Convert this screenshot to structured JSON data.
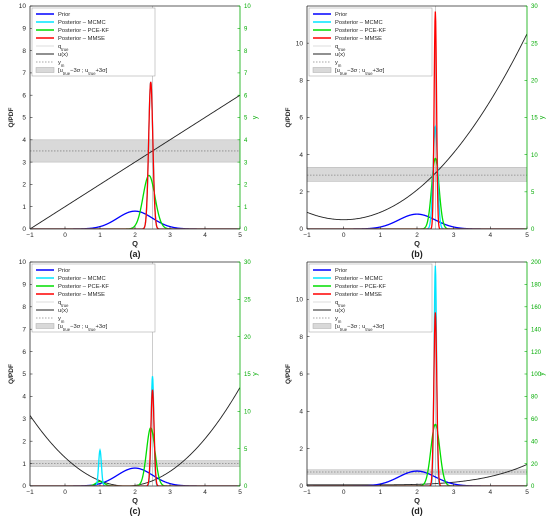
{
  "colors": {
    "prior": "#0000ff",
    "mcmc": "#00e5ff",
    "pce_kf": "#00dd00",
    "mmse": "#ff0000",
    "u": "#222222",
    "qtrue": "#aaaaaa",
    "band": "#d9d9d9",
    "y_axis": "#00aa00"
  },
  "legend_entries": [
    "Prior",
    "Posterior – MCMC",
    "Posterior – PCE-KF",
    "Posterior – MMSE",
    "q_true",
    "u(x)",
    "y_m",
    "[u_true−3σ ; u_true+3σ]"
  ],
  "chart_data": [
    {
      "type": "line",
      "panel_label": "(a)",
      "xlabel": "Q",
      "ylabel_left": "Q/PDF",
      "ylabel_right": "y",
      "xlim": [
        -1,
        5
      ],
      "ylim_left": [
        0,
        10
      ],
      "ylim_right": [
        0,
        10
      ],
      "x_ticks": [
        -1,
        0,
        1,
        2,
        3,
        4,
        5
      ],
      "y_left_ticks": [
        0,
        1,
        2,
        3,
        4,
        5,
        6,
        7,
        8,
        9,
        10
      ],
      "y_right_ticks": [
        0,
        1,
        2,
        3,
        4,
        5,
        6,
        7,
        8,
        9,
        10
      ],
      "q_true": 2.5,
      "y_m": 3.5,
      "band": [
        3.0,
        4.0
      ],
      "u": {
        "form": "linear",
        "slope": 1,
        "intercept": 1
      },
      "series": [
        {
          "name": "Prior",
          "mean": 2.0,
          "sd": 0.5,
          "peak": 0.8
        },
        {
          "name": "Posterior – MCMC",
          "mean": 2.45,
          "sd": 0.06,
          "peak": 6.6
        },
        {
          "name": "Posterior – PCE-KF",
          "mean": 2.4,
          "sd": 0.17,
          "peak": 2.4
        },
        {
          "name": "Posterior – MMSE",
          "mean": 2.45,
          "sd": 0.06,
          "peak": 6.6
        }
      ],
      "legend_show_all": true
    },
    {
      "type": "line",
      "panel_label": "(b)",
      "xlabel": "Q",
      "ylabel_left": "Q/PDF",
      "ylabel_right": "y",
      "xlim": [
        -1,
        5
      ],
      "ylim_left": [
        0,
        12
      ],
      "ylim_right": [
        0,
        30
      ],
      "x_ticks": [
        -1,
        0,
        1,
        2,
        3,
        4,
        5
      ],
      "y_left_ticks": [
        0,
        2,
        4,
        6,
        8,
        10
      ],
      "y_right_ticks": [
        0,
        5,
        10,
        15,
        20,
        25,
        30
      ],
      "q_true": 2.5,
      "y_m": 7.25,
      "band": [
        6.4,
        8.3
      ],
      "u": {
        "form": "quadratic",
        "a": 1,
        "h": 0,
        "k": 1.25
      },
      "series": [
        {
          "name": "Prior",
          "mean": 2.0,
          "sd": 0.5,
          "peak": 0.8
        },
        {
          "name": "Posterior – MCMC",
          "mean": 2.5,
          "sd": 0.06,
          "peak": 5.5
        },
        {
          "name": "Posterior – PCE-KF",
          "mean": 2.5,
          "sd": 0.1,
          "peak": 3.8
        },
        {
          "name": "Posterior – MMSE",
          "mean": 2.5,
          "sd": 0.033,
          "peak": 11.7
        }
      ],
      "legend_show_all": true
    },
    {
      "type": "line",
      "panel_label": "(c)",
      "xlabel": "Q",
      "ylabel_left": "Q/PDF",
      "ylabel_right": "y",
      "xlim": [
        -1,
        5
      ],
      "ylim_left": [
        0,
        10
      ],
      "ylim_right": [
        0,
        30
      ],
      "x_ticks": [
        -1,
        0,
        1,
        2,
        3,
        4,
        5
      ],
      "y_left_ticks": [
        0,
        1,
        2,
        3,
        4,
        5,
        6,
        7,
        8,
        9,
        10
      ],
      "y_right_ticks": [
        0,
        5,
        10,
        15,
        20,
        25,
        30
      ],
      "q_true": 2.5,
      "y_m": 3.0,
      "band": [
        2.6,
        3.4
      ],
      "u": {
        "form": "quadratic",
        "a": 1.25,
        "h": 1.75,
        "k": 0
      },
      "series": [
        {
          "name": "Prior",
          "mean": 2.0,
          "sd": 0.5,
          "peak": 0.8
        },
        {
          "name": "Posterior – MCMC",
          "mean": 2.5,
          "sd": 0.04,
          "peak": 4.9,
          "second": {
            "mean": 1.0,
            "sd": 0.04,
            "peak": 1.6
          }
        },
        {
          "name": "Posterior – PCE-KF",
          "mean": 2.45,
          "sd": 0.12,
          "peak": 2.6,
          "second": {
            "mean": 1.0,
            "sd": 0.12,
            "peak": 0.2
          }
        },
        {
          "name": "Posterior – MMSE",
          "mean": 2.5,
          "sd": 0.045,
          "peak": 4.3
        }
      ],
      "legend_show_all": true
    },
    {
      "type": "line",
      "panel_label": "(d)",
      "xlabel": "Q",
      "ylabel_left": "Q/PDF",
      "ylabel_right": "y",
      "xlim": [
        -1,
        5
      ],
      "ylim_left": [
        0,
        12
      ],
      "ylim_right": [
        0,
        200
      ],
      "x_ticks": [
        -1,
        0,
        1,
        2,
        3,
        4,
        5
      ],
      "y_left_ticks": [
        0,
        2,
        4,
        6,
        8,
        10
      ],
      "y_right_ticks": [
        0,
        20,
        40,
        60,
        80,
        100,
        120,
        140,
        160,
        180,
        200
      ],
      "q_true": 2.5,
      "y_m": 12.5,
      "band": [
        10.5,
        14.5
      ],
      "u": {
        "form": "power",
        "coef": 0.0292,
        "power": 4,
        "offset": 1
      },
      "series": [
        {
          "name": "Prior",
          "mean": 2.0,
          "sd": 0.5,
          "peak": 0.8
        },
        {
          "name": "Posterior – MCMC",
          "mean": 2.5,
          "sd": 0.034,
          "peak": 11.8
        },
        {
          "name": "Posterior – PCE-KF",
          "mean": 2.5,
          "sd": 0.12,
          "peak": 3.3
        },
        {
          "name": "Posterior – MMSE",
          "mean": 2.5,
          "sd": 0.04,
          "peak": 9.3
        }
      ],
      "legend_show_all": true
    }
  ]
}
